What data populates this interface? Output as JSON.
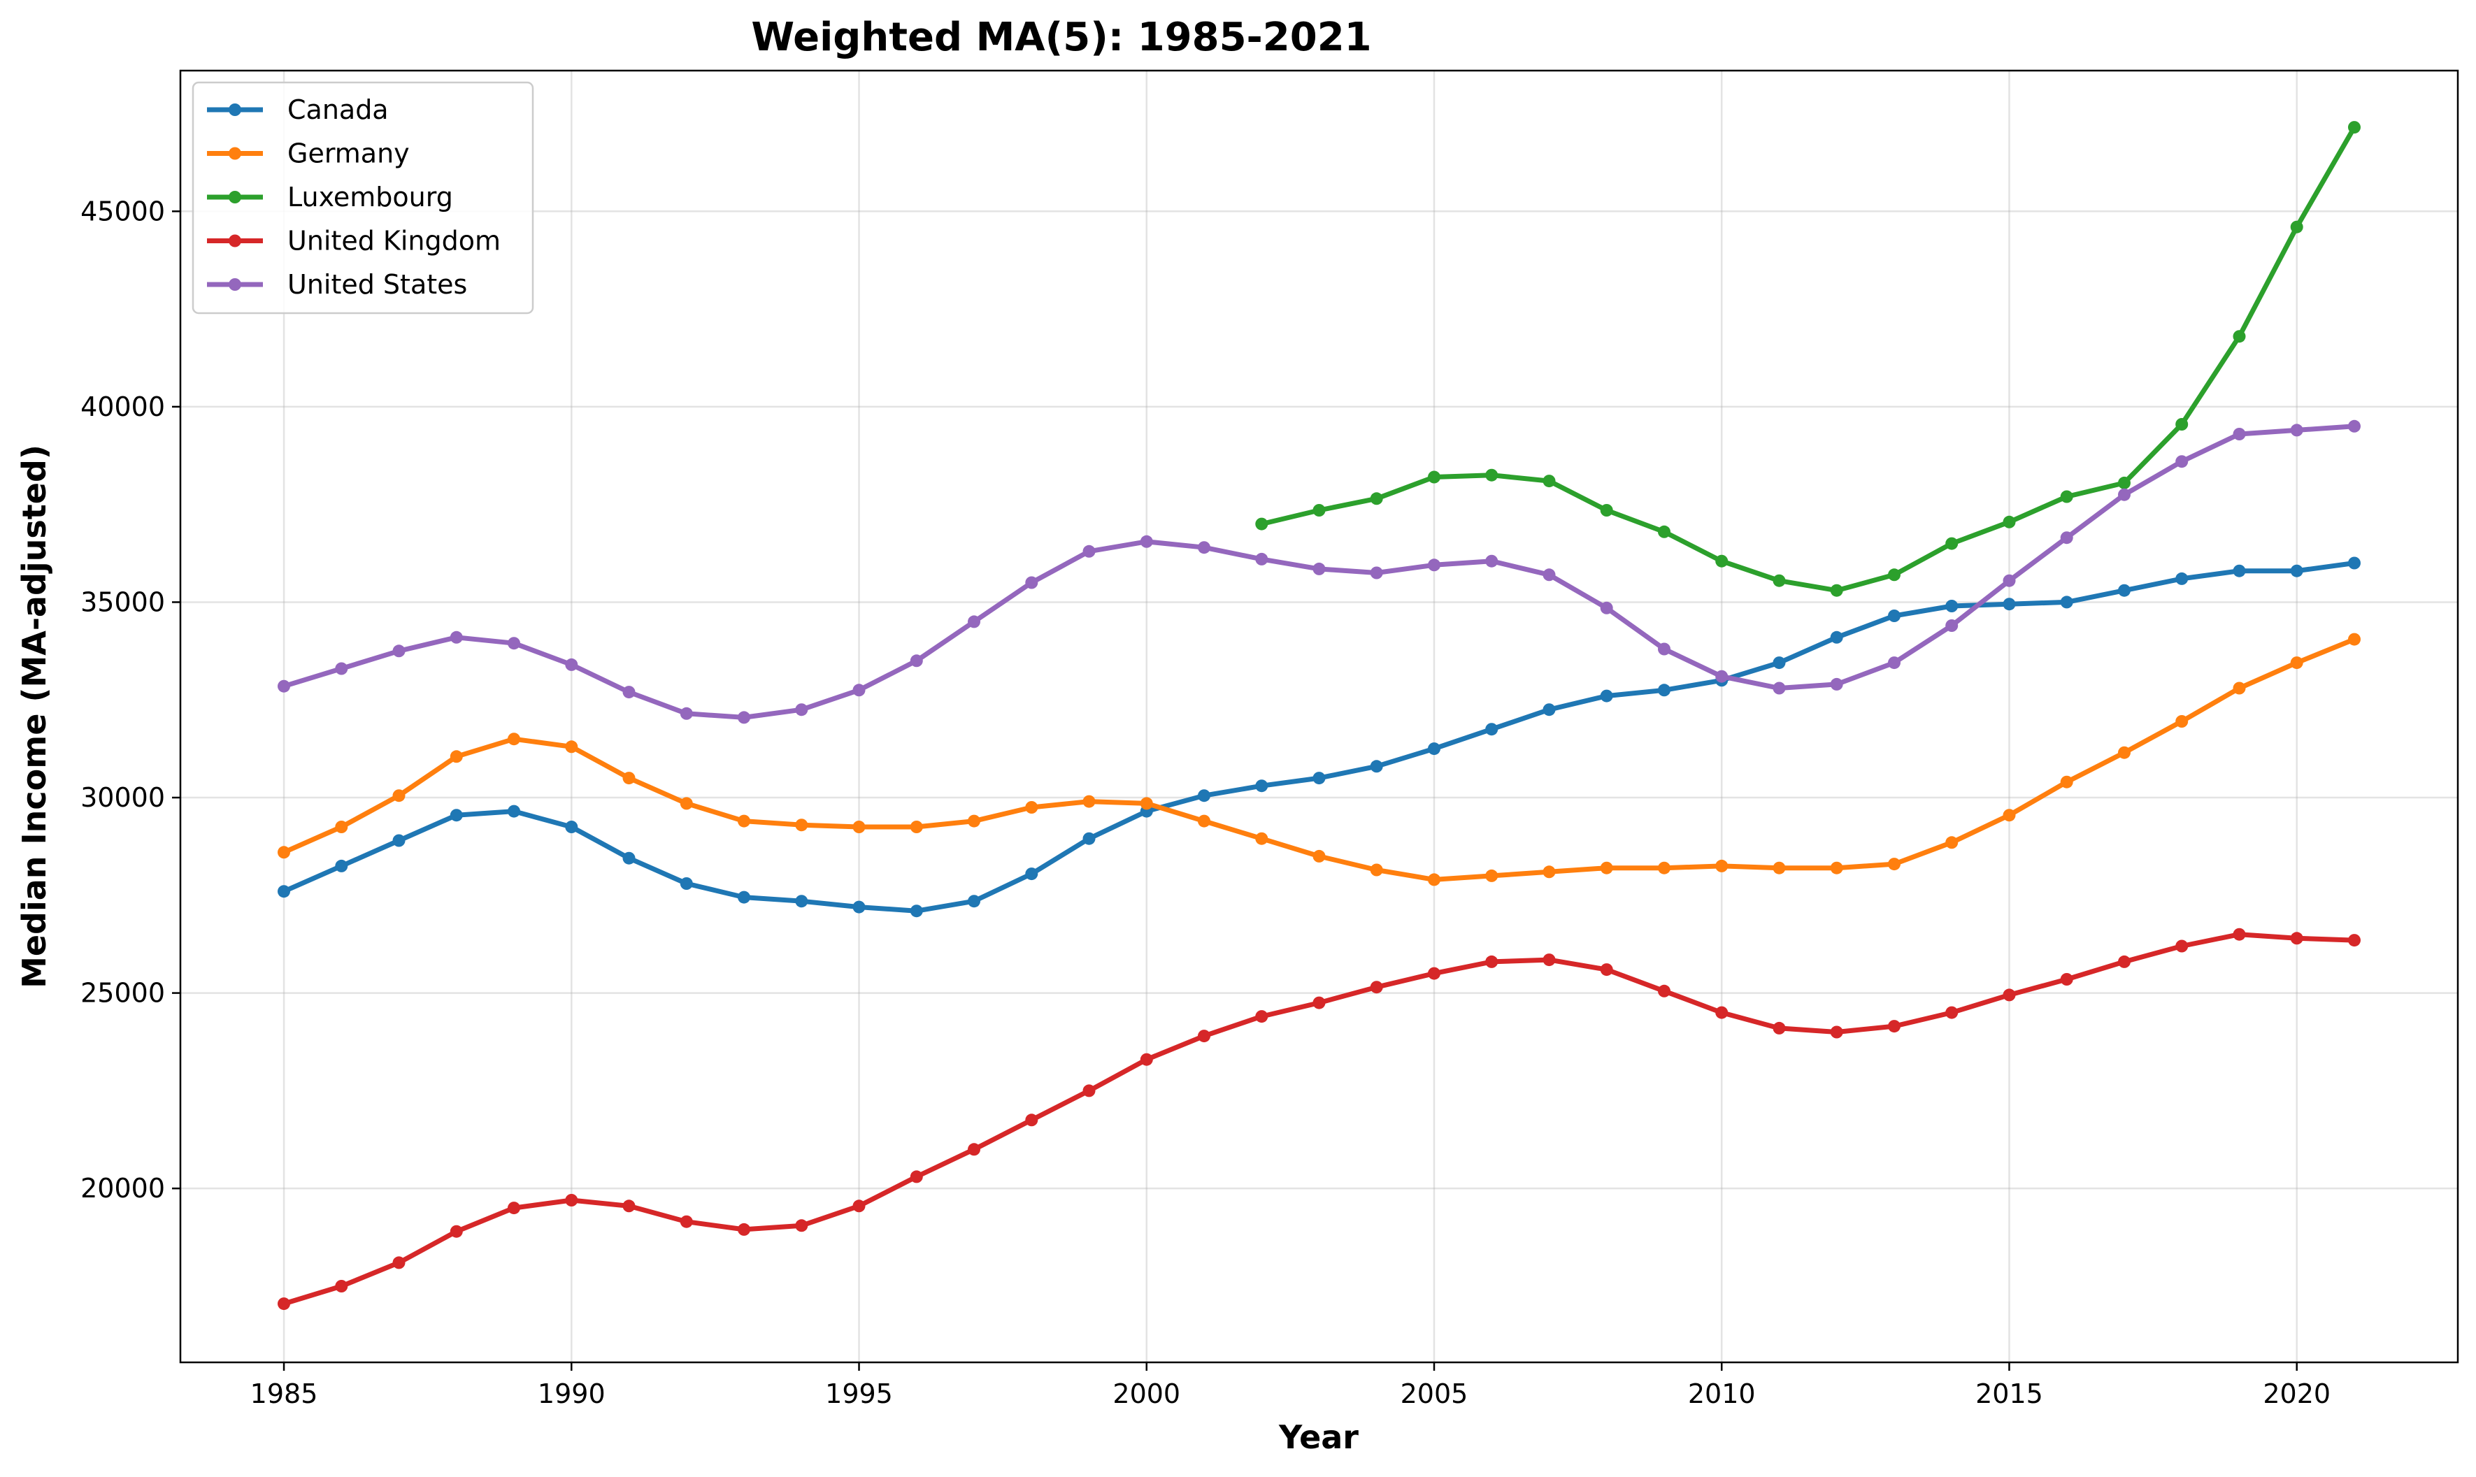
{
  "chart_data": {
    "type": "line",
    "title": "Weighted MA(5): 1985-2021",
    "xlabel": "Year",
    "ylabel": "Median Income (MA-adjusted)",
    "xlim": [
      1983.2,
      2022.8
    ],
    "ylim": [
      15550,
      48600
    ],
    "xticks": [
      "1985",
      "1990",
      "1995",
      "2000",
      "2005",
      "2010",
      "2015",
      "2020"
    ],
    "yticks": [
      "20000",
      "25000",
      "30000",
      "35000",
      "40000",
      "45000"
    ],
    "grid": true,
    "legend_position": "upper left",
    "series": [
      {
        "name": "Canada",
        "color": "#1f77b4",
        "x": [
          1985,
          1986,
          1987,
          1988,
          1989,
          1990,
          1991,
          1992,
          1993,
          1994,
          1995,
          1996,
          1997,
          1998,
          1999,
          2000,
          2001,
          2002,
          2003,
          2004,
          2005,
          2006,
          2007,
          2008,
          2009,
          2010,
          2011,
          2012,
          2013,
          2014,
          2015,
          2016,
          2017,
          2018,
          2019,
          2020,
          2021
        ],
        "values": [
          27600,
          28250,
          28900,
          29550,
          29650,
          29250,
          28450,
          27800,
          27450,
          27350,
          27200,
          27100,
          27350,
          28050,
          28950,
          29650,
          30050,
          30300,
          30500,
          30800,
          31250,
          31750,
          32250,
          32600,
          32750,
          33000,
          33450,
          34100,
          34650,
          34900,
          34950,
          35000,
          35300,
          35600,
          35800,
          35800,
          36000
        ]
      },
      {
        "name": "Germany",
        "color": "#ff7f0e",
        "x": [
          1985,
          1986,
          1987,
          1988,
          1989,
          1990,
          1991,
          1992,
          1993,
          1994,
          1995,
          1996,
          1997,
          1998,
          1999,
          2000,
          2001,
          2002,
          2003,
          2004,
          2005,
          2006,
          2007,
          2008,
          2009,
          2010,
          2011,
          2012,
          2013,
          2014,
          2015,
          2016,
          2017,
          2018,
          2019,
          2020,
          2021
        ],
        "values": [
          28600,
          29250,
          30050,
          31050,
          31500,
          31300,
          30500,
          29850,
          29400,
          29300,
          29250,
          29250,
          29400,
          29750,
          29900,
          29850,
          29400,
          28950,
          28500,
          28150,
          27900,
          28000,
          28100,
          28200,
          28200,
          28250,
          28200,
          28200,
          28300,
          28850,
          29550,
          30400,
          31150,
          31950,
          32800,
          33450,
          34050
        ]
      },
      {
        "name": "Luxembourg",
        "color": "#2ca02c",
        "x": [
          2002,
          2003,
          2004,
          2005,
          2006,
          2007,
          2008,
          2009,
          2010,
          2011,
          2012,
          2013,
          2014,
          2015,
          2016,
          2017,
          2018,
          2019,
          2020,
          2021
        ],
        "values": [
          37000,
          37350,
          37650,
          38200,
          38250,
          38100,
          37350,
          36800,
          36050,
          35550,
          35300,
          35700,
          36500,
          37050,
          37700,
          38050,
          39550,
          41800,
          44600,
          47150
        ]
      },
      {
        "name": "United Kingdom",
        "color": "#d62728",
        "x": [
          1985,
          1986,
          1987,
          1988,
          1989,
          1990,
          1991,
          1992,
          1993,
          1994,
          1995,
          1996,
          1997,
          1998,
          1999,
          2000,
          2001,
          2002,
          2003,
          2004,
          2005,
          2006,
          2007,
          2008,
          2009,
          2010,
          2011,
          2012,
          2013,
          2014,
          2015,
          2016,
          2017,
          2018,
          2019,
          2020,
          2021
        ],
        "values": [
          17050,
          17500,
          18100,
          18900,
          19500,
          19700,
          19550,
          19150,
          18950,
          19050,
          19550,
          20300,
          21000,
          21750,
          22500,
          23300,
          23900,
          24400,
          24750,
          25150,
          25500,
          25800,
          25850,
          25600,
          25050,
          24500,
          24100,
          24000,
          24150,
          24500,
          24950,
          25350,
          25800,
          26200,
          26500,
          26400,
          26350
        ]
      },
      {
        "name": "United States",
        "color": "#9467bd",
        "x": [
          1985,
          1986,
          1987,
          1988,
          1989,
          1990,
          1991,
          1992,
          1993,
          1994,
          1995,
          1996,
          1997,
          1998,
          1999,
          2000,
          2001,
          2002,
          2003,
          2004,
          2005,
          2006,
          2007,
          2008,
          2009,
          2010,
          2011,
          2012,
          2013,
          2014,
          2015,
          2016,
          2017,
          2018,
          2019,
          2020,
          2021
        ],
        "values": [
          32850,
          33300,
          33750,
          34100,
          33950,
          33400,
          32700,
          32150,
          32050,
          32250,
          32750,
          33500,
          34500,
          35500,
          36300,
          36550,
          36400,
          36100,
          35850,
          35750,
          35950,
          36050,
          35700,
          34850,
          33800,
          33100,
          32800,
          32900,
          33450,
          34400,
          35550,
          36650,
          37750,
          38600,
          39300,
          39400,
          39500
        ]
      }
    ]
  }
}
